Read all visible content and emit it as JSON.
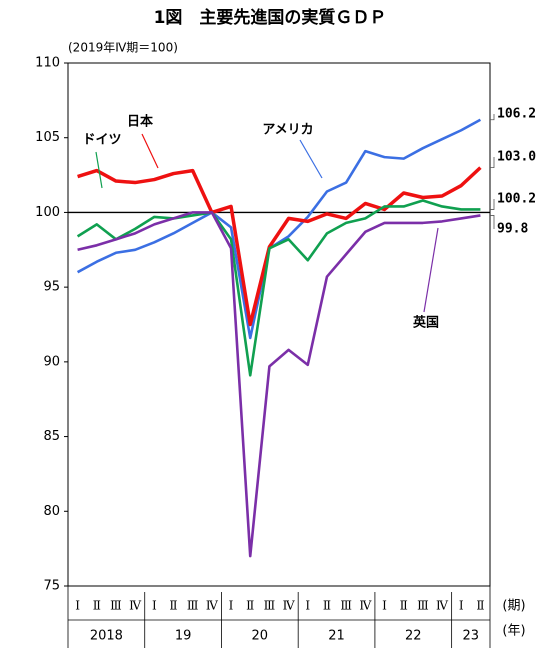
{
  "chart_data": {
    "type": "line",
    "title": "1図　主要先進国の実質ＧＤＰ",
    "subtitle": "(2019年Ⅳ期＝100)",
    "categories": [
      "Ⅰ",
      "Ⅱ",
      "Ⅲ",
      "Ⅳ",
      "Ⅰ",
      "Ⅱ",
      "Ⅲ",
      "Ⅳ",
      "Ⅰ",
      "Ⅱ",
      "Ⅲ",
      "Ⅳ",
      "Ⅰ",
      "Ⅱ",
      "Ⅲ",
      "Ⅳ",
      "Ⅰ",
      "Ⅱ",
      "Ⅲ",
      "Ⅳ",
      "Ⅰ",
      "Ⅱ"
    ],
    "year_labels": [
      "2018",
      null,
      null,
      null,
      "19",
      null,
      null,
      null,
      "20",
      null,
      null,
      null,
      "21",
      null,
      null,
      null,
      "22",
      null,
      null,
      null,
      "23",
      null
    ],
    "x_label": "(期)",
    "year_axis_label": "(年)",
    "ylim": [
      75,
      110
    ],
    "yticks": [
      75,
      80,
      85,
      90,
      95,
      100,
      105,
      110
    ],
    "reference_line": 100,
    "series": [
      {
        "name": "アメリカ",
        "color": "#3b6fe3",
        "values": [
          96.0,
          96.7,
          97.3,
          97.5,
          98.0,
          98.6,
          99.3,
          100,
          99.0,
          91.6,
          97.6,
          98.4,
          99.7,
          101.4,
          102.0,
          104.1,
          103.7,
          103.6,
          104.3,
          104.9,
          105.5,
          106.2
        ],
        "value_labels": [
          null,
          null,
          null,
          null,
          null,
          null,
          null,
          null,
          null,
          null,
          null,
          null,
          null,
          null,
          null,
          null,
          null,
          null,
          null,
          null,
          null,
          "106.2"
        ]
      },
      {
        "name": "日本",
        "color": "#ee1111",
        "values": [
          102.4,
          102.8,
          102.1,
          102.0,
          102.2,
          102.6,
          102.8,
          100,
          100.4,
          92.5,
          97.7,
          99.6,
          99.4,
          99.9,
          99.6,
          100.6,
          100.2,
          101.3,
          101.0,
          101.1,
          101.8,
          103.0
        ],
        "value_labels": [
          null,
          null,
          null,
          null,
          null,
          null,
          null,
          null,
          null,
          null,
          null,
          null,
          null,
          null,
          null,
          null,
          null,
          null,
          null,
          null,
          null,
          "103.0"
        ]
      },
      {
        "name": "ドイツ",
        "color": "#10a050",
        "values": [
          98.4,
          99.2,
          98.2,
          98.9,
          99.7,
          99.6,
          99.8,
          100,
          98.2,
          89.1,
          97.6,
          98.2,
          96.8,
          98.6,
          99.3,
          99.6,
          100.4,
          100.4,
          100.8,
          100.4,
          100.2,
          100.2
        ],
        "value_labels": [
          null,
          null,
          null,
          null,
          null,
          null,
          null,
          null,
          null,
          null,
          null,
          null,
          null,
          null,
          null,
          null,
          null,
          null,
          null,
          null,
          null,
          "100.2"
        ]
      },
      {
        "name": "英国",
        "color": "#7b2fa8",
        "values": [
          97.5,
          97.8,
          98.2,
          98.6,
          99.2,
          99.6,
          100,
          100,
          97.6,
          77.0,
          89.7,
          90.8,
          89.8,
          95.7,
          97.2,
          98.7,
          99.3,
          99.3,
          99.3,
          99.4,
          99.6,
          99.8
        ],
        "value_labels": [
          null,
          null,
          null,
          null,
          null,
          null,
          null,
          null,
          null,
          null,
          null,
          null,
          null,
          null,
          null,
          null,
          null,
          null,
          null,
          null,
          null,
          "99.8"
        ]
      }
    ]
  }
}
